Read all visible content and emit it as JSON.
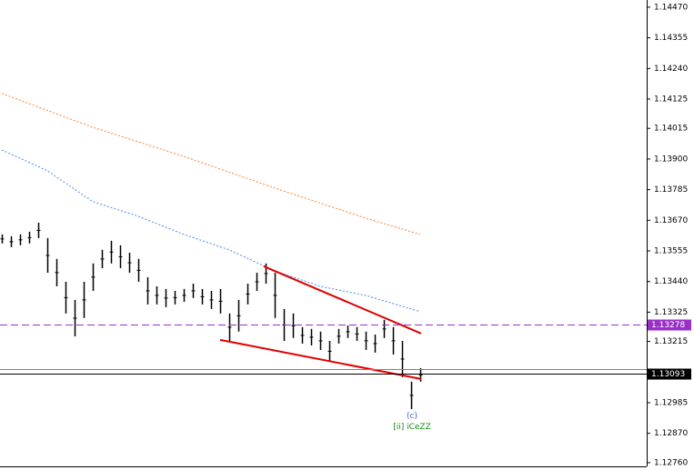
{
  "chart_data": {
    "type": "ohlc",
    "xlim": [
      -0.2,
      70.9
    ],
    "ylim": [
      1.12746,
      1.14497
    ],
    "yticks": [
      {
        "value": 1.1447,
        "label": "1.14470"
      },
      {
        "value": 1.14355,
        "label": "1.14355"
      },
      {
        "value": 1.1424,
        "label": "1.14240"
      },
      {
        "value": 1.14125,
        "label": "1.14125"
      },
      {
        "value": 1.14015,
        "label": "1.14015"
      },
      {
        "value": 1.139,
        "label": "1.13900"
      },
      {
        "value": 1.13785,
        "label": "1.13785"
      },
      {
        "value": 1.1367,
        "label": "1.13670"
      },
      {
        "value": 1.13555,
        "label": "1.13555"
      },
      {
        "value": 1.1344,
        "label": "1.13440"
      },
      {
        "value": 1.13325,
        "label": "1.13325"
      },
      {
        "value": 1.13215,
        "label": "1.13215"
      },
      {
        "value": 1.12985,
        "label": "1.12985"
      },
      {
        "value": 1.1287,
        "label": "1.12870"
      },
      {
        "value": 1.1276,
        "label": "1.12760"
      }
    ],
    "bar_color": "#000000",
    "high": [
      1.13617,
      1.1361,
      1.13617,
      1.13627,
      1.13661,
      1.13603,
      1.13525,
      1.13439,
      1.13371,
      1.13439,
      1.13508,
      1.13559,
      1.13593,
      1.13576,
      1.13548,
      1.13525,
      1.13456,
      1.13422,
      1.13412,
      1.13405,
      1.13412,
      1.13432,
      1.13412,
      1.13405,
      1.13412,
      1.1332,
      1.13371,
      1.13432,
      1.13473,
      1.13508,
      1.13473,
      1.13337,
      1.1332,
      1.13269,
      1.13262,
      1.13252,
      1.13217,
      1.13262,
      1.13275,
      1.13269,
      1.13252,
      1.13241,
      1.13296,
      1.13269,
      1.13217,
      1.13064,
      1.13115
    ],
    "low": [
      1.13583,
      1.13569,
      1.13576,
      1.13583,
      1.13603,
      1.13473,
      1.13422,
      1.1332,
      1.13234,
      1.13303,
      1.13405,
      1.1349,
      1.13508,
      1.1349,
      1.13473,
      1.13439,
      1.13354,
      1.13354,
      1.13344,
      1.13354,
      1.13364,
      1.13378,
      1.13354,
      1.13337,
      1.1332,
      1.13217,
      1.13252,
      1.13354,
      1.13405,
      1.13432,
      1.13303,
      1.13217,
      1.13228,
      1.13207,
      1.132,
      1.13183,
      1.13139,
      1.13207,
      1.13228,
      1.13217,
      1.13183,
      1.13173,
      1.13228,
      1.13166,
      1.13081,
      1.12961,
      1.13064
    ],
    "lines": [
      {
        "color": "#ff7f27",
        "x": [
          0,
          10,
          20,
          30,
          40,
          46
        ],
        "values": [
          1.14146,
          1.14019,
          1.1391,
          1.13791,
          1.13678,
          1.13617
        ]
      },
      {
        "color": "#4a86e8",
        "x": [
          0,
          5,
          10,
          15,
          20,
          25,
          30,
          35,
          40,
          46
        ],
        "values": [
          1.13934,
          1.13856,
          1.1374,
          1.13685,
          1.13617,
          1.13559,
          1.1348,
          1.13422,
          1.13388,
          1.13327
        ]
      },
      {
        "color": "#e00000",
        "x": [
          28.8,
          46.1
        ],
        "values": [
          1.13497,
          1.13245
        ]
      },
      {
        "color": "#e00000",
        "x": [
          24,
          46.1
        ],
        "values": [
          1.13221,
          1.13074
        ]
      }
    ],
    "levels": [
      {
        "value": 1.13278,
        "label": "1.13278",
        "color": "#9b30c8"
      },
      {
        "value": 1.13112,
        "color": "#d2691e"
      },
      {
        "value": 1.13093,
        "label": "1.13093",
        "color": "#000000"
      }
    ],
    "annotations": [
      {
        "text": "(c)",
        "x": 45.1,
        "value": 1.12935,
        "color": "#3a5fd8"
      },
      {
        "text": "[ii] iCeZZ",
        "x": 45.1,
        "value": 1.12895,
        "color": "#1a8a1a"
      }
    ]
  }
}
